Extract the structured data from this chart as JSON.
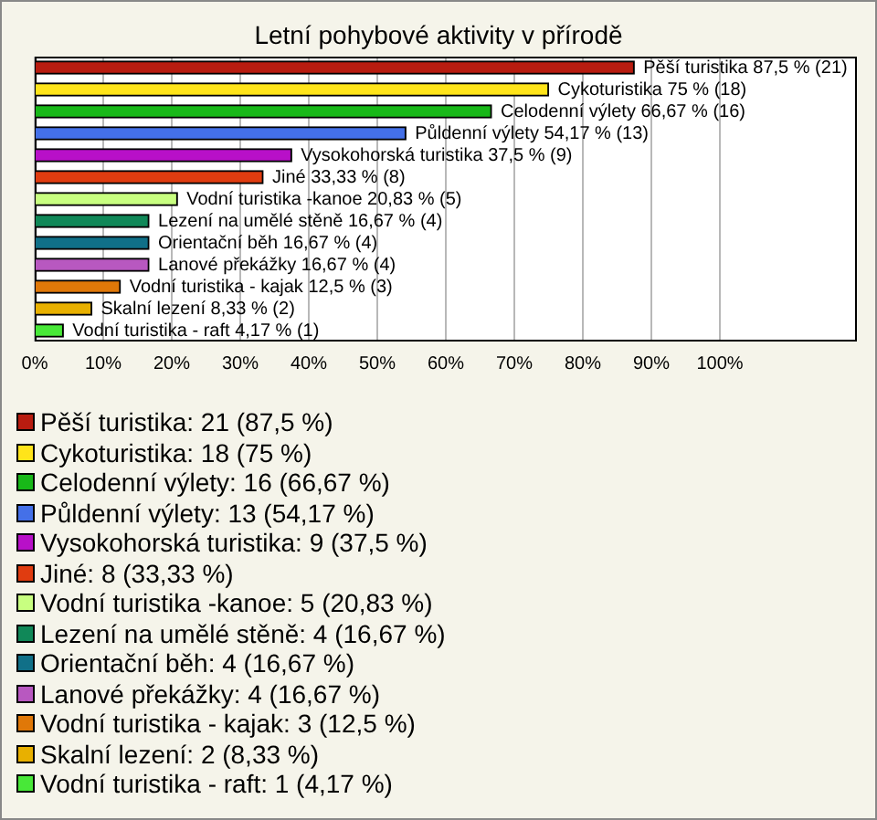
{
  "chart_data": {
    "type": "bar",
    "orientation": "horizontal",
    "title": "Letní pohybové aktivity v přírodě",
    "categories": [
      "Pěší turistika",
      "Cykoturistika",
      "Celodenní výlety",
      "Půldenní výlety",
      "Vysokohorská turistika",
      "Jiné",
      "Vodní turistika -kanoe",
      "Lezení na umělé stěně",
      "Orientační běh",
      "Lanové překážky",
      "Vodní turistika - kajak",
      "Skalní lezení",
      "Vodní turistika - raft"
    ],
    "values": [
      87.5,
      75,
      66.67,
      54.17,
      37.5,
      33.33,
      20.83,
      16.67,
      16.67,
      16.67,
      12.5,
      8.33,
      4.17
    ],
    "value_labels": [
      "87,5 % (21)",
      "75 % (18)",
      "66,67 % (16)",
      "54,17 % (13)",
      "37,5 % (9)",
      "33,33 % (8)",
      "20,83 % (5)",
      "16,67 % (4)",
      "16,67 % (4)",
      "16,67 % (4)",
      "12,5 % (3)",
      "8,33 % (2)",
      "4,17 % (1)"
    ],
    "colors": [
      "#b81c10",
      "#ffe41a",
      "#18b818",
      "#4470e8",
      "#b810c8",
      "#e03c10",
      "#c8ff80",
      "#108858",
      "#107088",
      "#b858c0",
      "#e07808",
      "#e8b000",
      "#48e838"
    ],
    "xlim": [
      0,
      120
    ],
    "xticks": [
      {
        "value": 0,
        "label": "0%"
      },
      {
        "value": 10,
        "label": "10%"
      },
      {
        "value": 20,
        "label": "20%"
      },
      {
        "value": 30,
        "label": "30%"
      },
      {
        "value": 40,
        "label": "40%"
      },
      {
        "value": 50,
        "label": "50%"
      },
      {
        "value": 60,
        "label": "60%"
      },
      {
        "value": 70,
        "label": "70%"
      },
      {
        "value": 80,
        "label": "80%"
      },
      {
        "value": 90,
        "label": "90%"
      },
      {
        "value": 100,
        "label": "100%"
      }
    ],
    "grid": "x",
    "tick_labels": "x",
    "annotations": [
      "Pěší turistika: 21 (87,5 %)",
      "Cykoturistika: 18 (75 %)",
      "Celodenní výlety: 16 (66,67 %)",
      "Půldenní výlety: 13 (54,17 %)",
      "Vysokohorská turistika: 9 (37,5 %)",
      "Jiné: 8 (33,33 %)",
      "Vodní turistika -kanoe: 5 (20,83 %)",
      "Lezení na umělé stěně: 4 (16,67 %)",
      "Orientační běh: 4 (16,67 %)",
      "Lanové překážky: 4 (16,67 %)",
      "Vodní turistika - kajak: 3 (12,5 %)",
      "Skalní lezení: 2 (8,33 %)",
      "Vodní turistika - raft: 1 (4,17 %)"
    ]
  }
}
